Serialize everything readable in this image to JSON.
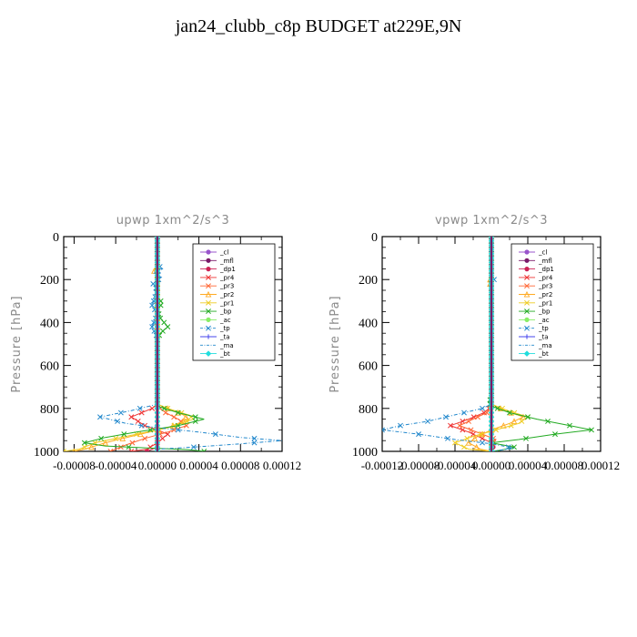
{
  "title": "jan24_clubb_c8p  BUDGET at229E,9N",
  "chart_data": [
    {
      "type": "line",
      "title": "upwp   1xm^2/s^3",
      "ylabel": "Pressure [hPa]",
      "ylim": [
        1000,
        0
      ],
      "xlim": [
        -9e-05,
        0.00012
      ],
      "xticks": [
        "-0.00008",
        "-0.00004",
        "0.00000",
        "0.00004",
        "0.00008",
        "0.00012"
      ],
      "xtick_values": [
        -8e-05,
        -4e-05,
        0,
        4e-05,
        8e-05,
        0.00012
      ],
      "yticks": [
        0,
        200,
        400,
        600,
        800,
        1000
      ],
      "legend_position": "top-right",
      "series": [
        {
          "name": "_cl",
          "color": "#9955cc",
          "marker": "circle",
          "points": [
            [
              0,
              0
            ],
            [
              0,
              1000
            ]
          ]
        },
        {
          "name": "_mfl",
          "color": "#7a1a6a",
          "marker": "circle",
          "points": [
            [
              0,
              0
            ],
            [
              0,
              1000
            ]
          ]
        },
        {
          "name": "_dp1",
          "color": "#cc2255",
          "marker": "circle",
          "points": [
            [
              0,
              0
            ],
            [
              0,
              980
            ],
            [
              -1e-05,
              1000
            ]
          ]
        },
        {
          "name": "_pr4",
          "color": "#ee3333",
          "marker": "x",
          "points": [
            [
              0,
              0
            ],
            [
              0,
              780
            ],
            [
              -5e-06,
              800
            ],
            [
              -2.5e-05,
              840
            ],
            [
              -1.2e-05,
              880
            ],
            [
              0,
              900
            ],
            [
              1e-05,
              920
            ],
            [
              5e-06,
              940
            ],
            [
              0,
              960
            ],
            [
              -1e-05,
              990
            ],
            [
              -2.5e-05,
              1000
            ]
          ]
        },
        {
          "name": "_pr3",
          "color": "#ff6633",
          "marker": "x",
          "points": [
            [
              0,
              0
            ],
            [
              0,
              790
            ],
            [
              8e-06,
              820
            ],
            [
              2e-05,
              850
            ],
            [
              2.8e-05,
              880
            ],
            [
              1e-05,
              910
            ],
            [
              -1.2e-05,
              940
            ],
            [
              -3e-05,
              970
            ],
            [
              -4.5e-05,
              1000
            ]
          ]
        },
        {
          "name": "_pr2",
          "color": "#ffaa22",
          "marker": "triangle",
          "points": [
            [
              0,
              0
            ],
            [
              0,
              140
            ],
            [
              -3e-06,
              160
            ],
            [
              0,
              180
            ],
            [
              0,
              780
            ],
            [
              1e-05,
              800
            ],
            [
              2.5e-05,
              830
            ],
            [
              3e-05,
              850
            ],
            [
              1e-05,
              890
            ],
            [
              -2.5e-05,
              930
            ],
            [
              -5e-05,
              960
            ],
            [
              -7e-05,
              990
            ],
            [
              -8e-05,
              1000
            ]
          ]
        },
        {
          "name": "_pr1",
          "color": "#eecc22",
          "marker": "x",
          "points": [
            [
              0,
              0
            ],
            [
              0,
              780
            ],
            [
              1e-05,
              800
            ],
            [
              3e-05,
              830
            ],
            [
              3.5e-05,
              850
            ],
            [
              1e-05,
              890
            ],
            [
              -3e-05,
              930
            ],
            [
              -6e-05,
              960
            ],
            [
              -7.5e-05,
              990
            ],
            [
              -9e-05,
              1000
            ]
          ]
        },
        {
          "name": "_bp",
          "color": "#22aa22",
          "marker": "x",
          "points": [
            [
              0,
              0
            ],
            [
              0,
              280
            ],
            [
              5e-06,
              310
            ],
            [
              0,
              340
            ],
            [
              3e-06,
              380
            ],
            [
              1e-05,
              420
            ],
            [
              3e-06,
              450
            ],
            [
              0,
              480
            ],
            [
              0,
              790
            ],
            [
              2e-05,
              820
            ],
            [
              4.5e-05,
              850
            ],
            [
              2e-05,
              880
            ],
            [
              -2e-05,
              910
            ],
            [
              -5e-05,
              935
            ],
            [
              -7e-05,
              960
            ],
            [
              -5e-05,
              975
            ],
            [
              -5e-06,
              985
            ],
            [
              3e-05,
              992
            ],
            [
              4.5e-05,
              1000
            ]
          ]
        },
        {
          "name": "_ac",
          "color": "#88ee66",
          "marker": "circle",
          "points": [
            [
              0,
              0
            ],
            [
              0,
              1000
            ]
          ]
        },
        {
          "name": "_tp",
          "color": "#2288cc",
          "marker": "x",
          "points": [
            [
              0,
              0
            ],
            [
              0,
              130
            ],
            [
              5e-06,
              150
            ],
            [
              -3e-06,
              170
            ],
            [
              4e-06,
              190
            ],
            [
              -4e-06,
              220
            ],
            [
              0,
              250
            ],
            [
              -5e-06,
              320
            ],
            [
              0,
              360
            ],
            [
              -5e-06,
              420
            ],
            [
              0,
              470
            ],
            [
              0,
              780
            ],
            [
              -2.5e-05,
              810
            ],
            [
              -5.5e-05,
              840
            ],
            [
              -3e-05,
              870
            ],
            [
              0,
              890
            ],
            [
              4e-05,
              910
            ],
            [
              8e-05,
              935
            ],
            [
              0.00012,
              950
            ],
            [
              8e-05,
              965
            ],
            [
              3.5e-05,
              980
            ],
            [
              0,
              990
            ],
            [
              0,
              1000
            ]
          ]
        },
        {
          "name": "_ta",
          "color": "#4444ee",
          "marker": "plus",
          "points": [
            [
              0,
              0
            ],
            [
              0,
              1000
            ]
          ]
        },
        {
          "name": "_ma",
          "color": "#2288cc",
          "marker": "none",
          "points": [
            [
              0,
              0
            ],
            [
              0,
              1000
            ]
          ]
        },
        {
          "name": "_bt",
          "color": "#22dddd",
          "marker": "diamond",
          "points": [
            [
              0,
              0
            ],
            [
              0,
              1000
            ]
          ]
        }
      ]
    },
    {
      "type": "line",
      "title": "vpwp   1xm^2/s^3",
      "ylabel": "Pressure [hPa]",
      "ylim": [
        1000,
        0
      ],
      "xlim": [
        -0.00012,
        0.00012
      ],
      "xticks": [
        "-0.00012",
        "-0.00008",
        "-0.00004",
        "0.00000",
        "0.00004",
        "0.00008",
        "0.00012"
      ],
      "xtick_values": [
        -0.00012,
        -8e-05,
        -4e-05,
        0,
        4e-05,
        8e-05,
        0.00012
      ],
      "yticks": [
        0,
        200,
        400,
        600,
        800,
        1000
      ],
      "legend_position": "top-right",
      "series": [
        {
          "name": "_cl",
          "color": "#9955cc",
          "marker": "circle",
          "points": [
            [
              0,
              0
            ],
            [
              0,
              1000
            ]
          ]
        },
        {
          "name": "_mfl",
          "color": "#7a1a6a",
          "marker": "circle",
          "points": [
            [
              0,
              0
            ],
            [
              0,
              1000
            ]
          ]
        },
        {
          "name": "_dp1",
          "color": "#cc2255",
          "marker": "circle",
          "points": [
            [
              0,
              0
            ],
            [
              0,
              970
            ],
            [
              3e-06,
              985
            ],
            [
              0,
              1000
            ]
          ]
        },
        {
          "name": "_pr4",
          "color": "#ee3333",
          "marker": "x",
          "points": [
            [
              0,
              0
            ],
            [
              0,
              790
            ],
            [
              -8e-06,
              820
            ],
            [
              -2.5e-05,
              850
            ],
            [
              -4.5e-05,
              880
            ],
            [
              -2.5e-05,
              910
            ],
            [
              -1e-05,
              940
            ],
            [
              0,
              960
            ],
            [
              0,
              1000
            ]
          ]
        },
        {
          "name": "_pr3",
          "color": "#ff6633",
          "marker": "x",
          "points": [
            [
              0,
              0
            ],
            [
              0,
              790
            ],
            [
              -5e-06,
              820
            ],
            [
              -2e-05,
              850
            ],
            [
              -3.5e-05,
              880
            ],
            [
              -1e-05,
              920
            ],
            [
              5e-06,
              945
            ],
            [
              0,
              970
            ],
            [
              0,
              1000
            ]
          ]
        },
        {
          "name": "_pr2",
          "color": "#ffaa22",
          "marker": "triangle",
          "points": [
            [
              0,
              0
            ],
            [
              0,
              190
            ],
            [
              -3e-06,
              210
            ],
            [
              0,
              230
            ],
            [
              0,
              780
            ],
            [
              1.5e-05,
              810
            ],
            [
              3.5e-05,
              840
            ],
            [
              2e-05,
              870
            ],
            [
              0,
              900
            ],
            [
              -1.5e-05,
              930
            ],
            [
              -2.5e-05,
              960
            ],
            [
              -1.2e-05,
              990
            ],
            [
              0,
              1000
            ]
          ]
        },
        {
          "name": "_pr1",
          "color": "#eecc22",
          "marker": "x",
          "points": [
            [
              0,
              0
            ],
            [
              0,
              780
            ],
            [
              1.8e-05,
              810
            ],
            [
              4e-05,
              840
            ],
            [
              3e-05,
              870
            ],
            [
              5e-06,
              900
            ],
            [
              -2e-05,
              930
            ],
            [
              -4e-05,
              960
            ],
            [
              -2.5e-05,
              990
            ],
            [
              0,
              1000
            ]
          ]
        },
        {
          "name": "_bp",
          "color": "#22aa22",
          "marker": "x",
          "points": [
            [
              0,
              0
            ],
            [
              0,
              750
            ],
            [
              -3e-06,
              770
            ],
            [
              0,
              790
            ],
            [
              2e-05,
              820
            ],
            [
              5e-05,
              850
            ],
            [
              8e-05,
              875
            ],
            [
              0.00011,
              900
            ],
            [
              7e-05,
              920
            ],
            [
              3e-05,
              945
            ],
            [
              0,
              960
            ],
            [
              2.5e-05,
              980
            ],
            [
              1e-05,
              995
            ],
            [
              0,
              1000
            ]
          ]
        },
        {
          "name": "_ac",
          "color": "#88ee66",
          "marker": "circle",
          "points": [
            [
              0,
              0
            ],
            [
              0,
              1000
            ]
          ]
        },
        {
          "name": "_tp",
          "color": "#2288cc",
          "marker": "x",
          "points": [
            [
              0,
              0
            ],
            [
              0,
              180
            ],
            [
              3e-06,
              200
            ],
            [
              0,
              220
            ],
            [
              0,
              780
            ],
            [
              -1e-05,
              800
            ],
            [
              -4e-05,
              830
            ],
            [
              -7e-05,
              860
            ],
            [
              -0.0001,
              880
            ],
            [
              -0.00012,
              900
            ],
            [
              -8e-05,
              920
            ],
            [
              -4e-05,
              945
            ],
            [
              0,
              965
            ],
            [
              2.5e-05,
              985
            ],
            [
              0,
              1000
            ]
          ]
        },
        {
          "name": "_ta",
          "color": "#4444ee",
          "marker": "plus",
          "points": [
            [
              0,
              0
            ],
            [
              0,
              1000
            ]
          ]
        },
        {
          "name": "_ma",
          "color": "#2288cc",
          "marker": "none",
          "points": [
            [
              0,
              0
            ],
            [
              0,
              1000
            ]
          ]
        },
        {
          "name": "_bt",
          "color": "#22dddd",
          "marker": "diamond",
          "points": [
            [
              0,
              0
            ],
            [
              0,
              1000
            ]
          ]
        }
      ]
    }
  ]
}
